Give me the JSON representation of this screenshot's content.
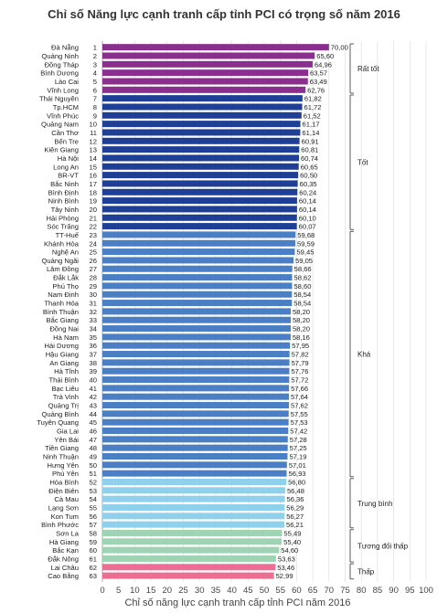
{
  "chart_data": {
    "type": "bar",
    "orientation": "horizontal",
    "title": "Chỉ số Năng lực cạnh tranh cấp tỉnh PCI có trọng số năm 2016",
    "xlabel": "Chỉ số năng lực cạnh tranh cấp tỉnh PCI năm 2016",
    "ylabel": "",
    "xlim": [
      0,
      100
    ],
    "xticks": [
      0,
      5,
      10,
      15,
      20,
      25,
      30,
      35,
      40,
      45,
      50,
      55,
      60,
      65,
      70,
      75,
      80,
      85,
      90,
      95,
      100
    ],
    "grid": true,
    "categories": [
      "Đà Nẵng",
      "Quảng Ninh",
      "Đồng Tháp",
      "Bình Dương",
      "Lào Cai",
      "Vĩnh Long",
      "Thái Nguyên",
      "Tp.HCM",
      "Vĩnh Phúc",
      "Quảng Nam",
      "Cần Thơ",
      "Bến Tre",
      "Kiên Giang",
      "Hà Nội",
      "Long An",
      "BR-VT",
      "Bắc Ninh",
      "Bình Định",
      "Ninh Bình",
      "Tây Ninh",
      "Hải Phòng",
      "Sóc Trăng",
      "TT-Huế",
      "Khánh Hòa",
      "Nghệ An",
      "Quảng Ngãi",
      "Lâm Đồng",
      "Đắk Lắk",
      "Phú Thọ",
      "Nam Định",
      "Thanh Hóa",
      "Bình Thuận",
      "Bắc Giang",
      "Đồng Nai",
      "Hà Nam",
      "Hải Dương",
      "Hậu Giang",
      "An Giang",
      "Hà Tĩnh",
      "Thái Bình",
      "Bạc Liêu",
      "Trà Vinh",
      "Quảng Trị",
      "Quảng Bình",
      "Tuyên Quang",
      "Gia Lai",
      "Yên Bái",
      "Tiền Giang",
      "Ninh Thuận",
      "Hưng Yên",
      "Phú Yên",
      "Hòa Bình",
      "Điện Biên",
      "Cà Mau",
      "Lạng Sơn",
      "Kon Tum",
      "Bình Phước",
      "Sơn La",
      "Hà Giang",
      "Bắc Kạn",
      "Đắk Nông",
      "Lai Châu",
      "Cao Bằng"
    ],
    "ranks": [
      1,
      2,
      3,
      4,
      5,
      6,
      7,
      8,
      9,
      10,
      11,
      12,
      13,
      14,
      15,
      16,
      17,
      18,
      19,
      20,
      21,
      22,
      23,
      24,
      25,
      26,
      27,
      28,
      29,
      30,
      31,
      32,
      33,
      34,
      35,
      36,
      37,
      38,
      39,
      40,
      41,
      42,
      43,
      44,
      45,
      46,
      47,
      48,
      49,
      50,
      51,
      52,
      53,
      54,
      55,
      56,
      57,
      58,
      59,
      60,
      61,
      62,
      63
    ],
    "values": [
      70.0,
      65.6,
      64.96,
      63.57,
      63.49,
      62.76,
      61.82,
      61.72,
      61.52,
      61.17,
      61.14,
      60.91,
      60.81,
      60.74,
      60.65,
      60.5,
      60.35,
      60.24,
      60.14,
      60.14,
      60.1,
      60.07,
      59.68,
      59.59,
      59.45,
      59.05,
      58.66,
      58.62,
      58.6,
      58.54,
      58.54,
      58.2,
      58.2,
      58.2,
      58.16,
      57.95,
      57.82,
      57.79,
      57.76,
      57.72,
      57.66,
      57.64,
      57.62,
      57.55,
      57.53,
      57.42,
      57.28,
      57.25,
      57.19,
      57.01,
      56.93,
      56.8,
      56.48,
      56.36,
      56.29,
      56.27,
      56.21,
      55.49,
      55.4,
      54.6,
      53.63,
      53.46,
      52.99
    ],
    "value_labels": [
      "70,00",
      "65,60",
      "64,96",
      "63,57",
      "63,49",
      "62,76",
      "61,82",
      "61,72",
      "61,52",
      "61,17",
      "61,14",
      "60,91",
      "60,81",
      "60,74",
      "60,65",
      "60,50",
      "60,35",
      "60,24",
      "60,14",
      "60,14",
      "60,10",
      "60,07",
      "59,68",
      "59,59",
      "59,45",
      "59,05",
      "58,66",
      "58,62",
      "58,60",
      "58,54",
      "58,54",
      "58,20",
      "58,20",
      "58,20",
      "58,16",
      "57,95",
      "57,82",
      "57,79",
      "57,76",
      "57,72",
      "57,66",
      "57,64",
      "57,62",
      "57,55",
      "57,53",
      "57,42",
      "57,28",
      "57,25",
      "57,19",
      "57,01",
      "56,93",
      "56,80",
      "56,48",
      "56,36",
      "56,29",
      "56,27",
      "56,21",
      "55,49",
      "55,40",
      "54,60",
      "53,63",
      "53,46",
      "52,99"
    ],
    "groups": [
      {
        "name": "Rất tốt",
        "from": 0,
        "to": 5,
        "color": "#8b2f8f"
      },
      {
        "name": "Tốt",
        "from": 6,
        "to": 21,
        "color": "#1e3f95"
      },
      {
        "name": "Khá",
        "from": 22,
        "to": 50,
        "color": "#4a7fc6"
      },
      {
        "name": "Trung bình",
        "from": 51,
        "to": 56,
        "color": "#8fd1ec"
      },
      {
        "name": "Tương đối thấp",
        "from": 57,
        "to": 60,
        "color": "#9ed4b4"
      },
      {
        "name": "Thấp",
        "from": 61,
        "to": 62,
        "color": "#ec6f93"
      }
    ]
  }
}
